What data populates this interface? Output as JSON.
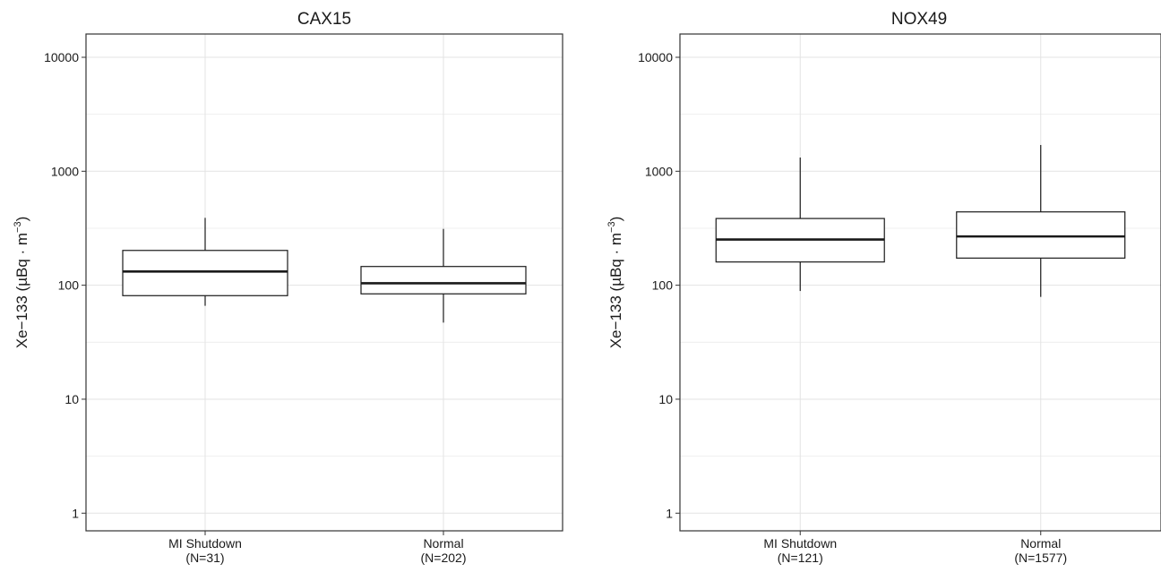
{
  "chart_data": [
    {
      "type": "box",
      "title": "CAX15",
      "ylabel": "Xe−133 (µBq · m⁻³)",
      "ylabel_parts": {
        "main": "Xe−133 (µBq · m",
        "sup": "−3",
        "close": ")"
      },
      "y_scale": "log10",
      "ylim": [
        0.7,
        16000
      ],
      "y_ticks": [
        1,
        10,
        100,
        1000,
        10000
      ],
      "y_tick_labels": [
        "1",
        "10",
        "100",
        "1000",
        "10000"
      ],
      "grid": true,
      "categories": [
        "MI Shutdown",
        "Normal"
      ],
      "category_sublabels": [
        "(N=31)",
        "(N=202)"
      ],
      "boxes": [
        {
          "category": "MI Shutdown",
          "whisker_low": 66,
          "q1": 81,
          "median": 132,
          "q3": 202,
          "whisker_high": 390
        },
        {
          "category": "Normal",
          "whisker_low": 47,
          "q1": 84,
          "median": 104,
          "q3": 146,
          "whisker_high": 312
        }
      ]
    },
    {
      "type": "box",
      "title": "NOX49",
      "ylabel": "Xe−133 (µBq · m⁻³)",
      "ylabel_parts": {
        "main": "Xe−133 (µBq · m",
        "sup": "−3",
        "close": ")"
      },
      "y_scale": "log10",
      "ylim": [
        0.7,
        16000
      ],
      "y_ticks": [
        1,
        10,
        100,
        1000,
        10000
      ],
      "y_tick_labels": [
        "1",
        "10",
        "100",
        "1000",
        "10000"
      ],
      "grid": true,
      "categories": [
        "MI Shutdown",
        "Normal"
      ],
      "category_sublabels": [
        "(N=121)",
        "(N=1577)"
      ],
      "boxes": [
        {
          "category": "MI Shutdown",
          "whisker_low": 89,
          "q1": 160,
          "median": 252,
          "q3": 385,
          "whisker_high": 1320
        },
        {
          "category": "Normal",
          "whisker_low": 79,
          "q1": 173,
          "median": 268,
          "q3": 440,
          "whisker_high": 1700
        }
      ]
    }
  ]
}
